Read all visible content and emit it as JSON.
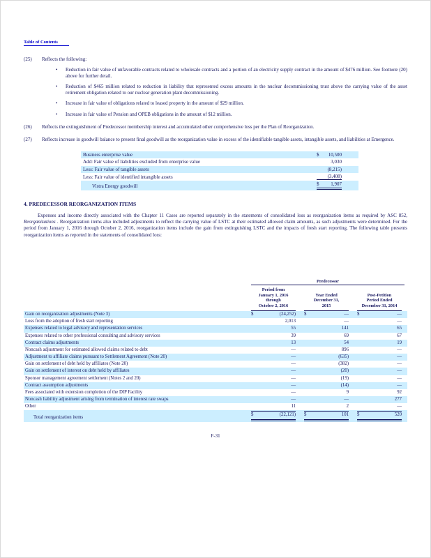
{
  "page": {
    "toc_link": "Table of Contents",
    "page_number": "F-31"
  },
  "colors": {
    "row_shade": "#cceeff",
    "link_blue": "#0000cc",
    "text": "#17175f"
  },
  "notes": [
    {
      "number": "(25)",
      "text": "Reflects the following:",
      "bullets": [
        "Reduction in fair value of unfavorable contracts related to wholesale contracts and a portion of an electricity supply contract in the amount of $476 million. See footnote (20) above for further detail.",
        "Reduction of $465 million related to reduction in liability that represented excess amounts in the nuclear decommissioning trust above the carrying value of the asset retirement obligation related to our nuclear generation plant decommissioning.",
        "Increase in fair value of obligations related to leased property in the amount of $29 million.",
        "Increase in fair value of Pension and OPEB obligations in the amount of $12 million."
      ]
    },
    {
      "number": "(26)",
      "text": "Reflects the extinguishment of Predecessor membership interest and accumulated other comprehensive loss per the Plan of Reorganization."
    },
    {
      "number": "(27)",
      "text": "Reflects increase in goodwill balance to present final goodwill as the reorganization value in excess of the identifiable tangible assets, intangible assets, and liabilities at Emergence."
    }
  ],
  "goodwill_table": {
    "rows": [
      {
        "label": "Business enterprise value",
        "sym": "$",
        "val": "10,500"
      },
      {
        "label": "Add: Fair value of liabilities excluded from enterprise value",
        "sym": "",
        "val": "3,030"
      },
      {
        "label": "Less: Fair value of tangible assets",
        "sym": "",
        "val": "(8,215)"
      },
      {
        "label": "Less: Fair value of identified intangible assets",
        "sym": "",
        "val": "(3,408)"
      },
      {
        "label": "Vistra Energy goodwill",
        "sym": "$",
        "val": "1,907"
      }
    ]
  },
  "section": {
    "heading": "4. PREDECESSOR REORGANIZATION ITEMS",
    "para_before": "Expenses and income directly associated with the Chapter 11 Cases are reported separately in the statements of consolidated loss as reorganization items as required by ASC 852, ",
    "para_italic": "Reorganizations",
    "para_after": " . Reorganization items also included adjustments to reflect the carrying value of LSTC at their estimated allowed claim amounts, as such adjustments were determined. For the period from January 1, 2016 through October 2, 2016, reorganization items include the gain from extinguishing LSTC and the impacts of fresh start reporting. The following table presents reorganization items as reported in the statements of consolidated loss:"
  },
  "reorg_table": {
    "group_header": "Predecessor",
    "columns": [
      "Period from\nJanuary 1, 2016\nthrough\nOctober 2, 2016",
      "Year Ended\nDecember 31,\n2015",
      "Post-Petition\nPeriod Ended\nDecember 31, 2014"
    ],
    "rows": [
      {
        "label": "Gain on reorganization adjustments (Note 3)",
        "dollar": true,
        "values": [
          "(24,252)",
          "—",
          "—"
        ]
      },
      {
        "label": "Loss from the adoption of fresh start reporting",
        "dollar": false,
        "values": [
          "2,013",
          "—",
          "—"
        ]
      },
      {
        "label": "Expenses related to legal advisory and representation services",
        "dollar": false,
        "values": [
          "55",
          "141",
          "65"
        ]
      },
      {
        "label": "Expenses related to other professional consulting and advisory services",
        "dollar": false,
        "values": [
          "39",
          "69",
          "67"
        ]
      },
      {
        "label": "Contract claims adjustments",
        "dollar": false,
        "values": [
          "13",
          "54",
          "19"
        ]
      },
      {
        "label": "Noncash adjustment for estimated allowed claims related to debt",
        "dollar": false,
        "values": [
          "—",
          "896",
          "—"
        ]
      },
      {
        "label": "Adjustment to affiliate claims pursuant to Settlement Agreement (Note 20)",
        "dollar": false,
        "values": [
          "—",
          "(635)",
          "—"
        ]
      },
      {
        "label": "Gain on settlement of debt held by affiliates (Note 20)",
        "dollar": false,
        "values": [
          "—",
          "(382)",
          "—"
        ]
      },
      {
        "label": "Gain on settlement of interest on debt held by affiliates",
        "dollar": false,
        "values": [
          "—",
          "(20)",
          "—"
        ]
      },
      {
        "label": "Sponsor management agreement settlement (Notes 2 and 20)",
        "dollar": false,
        "values": [
          "—",
          "(19)",
          "—"
        ]
      },
      {
        "label": "Contract assumption adjustments",
        "dollar": false,
        "values": [
          "—",
          "(14)",
          "—"
        ]
      },
      {
        "label": "Fees associated with extension completion of the DIP Facility",
        "dollar": false,
        "values": [
          "—",
          "9",
          "92"
        ]
      },
      {
        "label": "Noncash liability adjustment arising from termination of interest rate swaps",
        "dollar": false,
        "values": [
          "—",
          "—",
          "277"
        ]
      },
      {
        "label": "Other",
        "dollar": false,
        "values": [
          "11",
          "2",
          "—"
        ]
      },
      {
        "label": "Total reorganization items",
        "dollar": true,
        "total": true,
        "values": [
          "(22,121)",
          "101",
          "520"
        ]
      }
    ]
  }
}
